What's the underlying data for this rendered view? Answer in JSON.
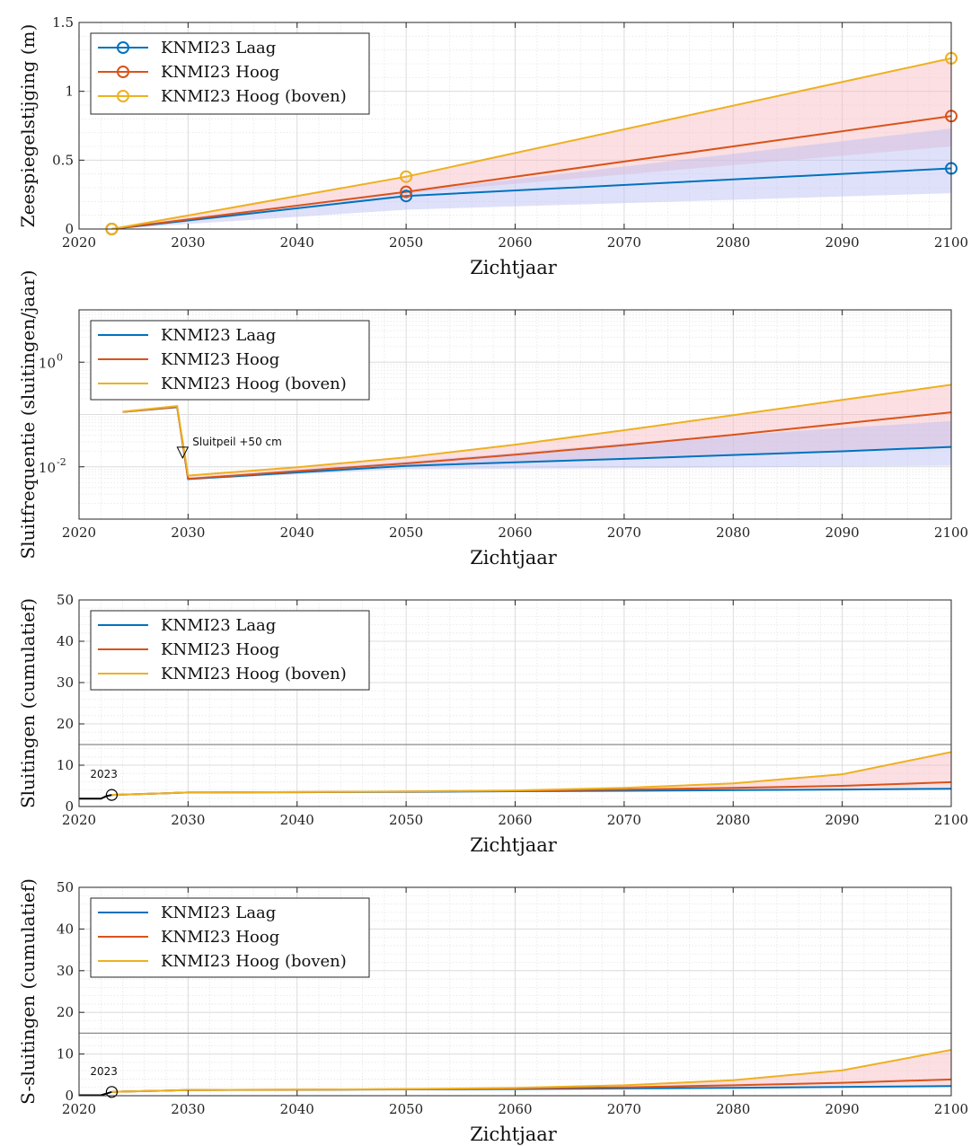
{
  "colors": {
    "laag": "#0072BD",
    "hoog": "#D95319",
    "boven": "#EDB120",
    "band_red": "#f7b9be",
    "band_blue": "#b9bcf5",
    "grid": "#dcdcdc",
    "axis": "#262626"
  },
  "chart_data": [
    {
      "type": "line",
      "xlabel": "Zichtjaar",
      "ylabel": "Zeespiegelstijging (m)",
      "xlim": [
        2020,
        2100
      ],
      "ylim": [
        0,
        1.5
      ],
      "yscale": "linear",
      "grid": true,
      "legend": "top-left",
      "xticks": [
        "2020",
        "2030",
        "2040",
        "2050",
        "2060",
        "2070",
        "2080",
        "2090",
        "2100"
      ],
      "yticks": [
        "0",
        "0.5",
        "1",
        "1.5"
      ],
      "series": [
        {
          "name": "KNMI23 Laag",
          "markers": true,
          "x": [
            2023,
            2050,
            2100
          ],
          "y": [
            0,
            0.24,
            0.44
          ]
        },
        {
          "name": "KNMI23 Hoog",
          "markers": true,
          "x": [
            2023,
            2050,
            2100
          ],
          "y": [
            0,
            0.27,
            0.82
          ]
        },
        {
          "name": "KNMI23 Hoog (boven)",
          "markers": true,
          "x": [
            2023,
            2050,
            2100
          ],
          "y": [
            0,
            0.38,
            1.24
          ]
        }
      ],
      "bands": [
        {
          "color": "red",
          "x": [
            2023,
            2050,
            2100
          ],
          "lower": [
            0,
            0.26,
            0.6
          ],
          "upper": [
            0,
            0.38,
            1.24
          ]
        },
        {
          "color": "blue",
          "x": [
            2023,
            2050,
            2100
          ],
          "lower": [
            0,
            0.14,
            0.26
          ],
          "upper": [
            0,
            0.27,
            0.73
          ]
        }
      ]
    },
    {
      "type": "line",
      "xlabel": "Zichtjaar",
      "ylabel": "Sluitfrequentie (sluitingen/jaar)",
      "xlim": [
        2020,
        2100
      ],
      "ylim": [
        0.001,
        10
      ],
      "yscale": "log",
      "grid": true,
      "legend": "top-left",
      "xticks": [
        "2020",
        "2030",
        "2040",
        "2050",
        "2060",
        "2070",
        "2080",
        "2090",
        "2100"
      ],
      "yticks": [
        {
          "base": "10",
          "exp": "0",
          "value": 1
        },
        {
          "base": "10",
          "exp": "-2",
          "value": 0.01
        }
      ],
      "annotation": {
        "text": "Sluitpeil +50 cm",
        "x": 2029.5,
        "y": 0.016
      },
      "series": [
        {
          "name": "KNMI23 Laag",
          "x": [
            2024,
            2029,
            2030,
            2040,
            2050,
            2060,
            2070,
            2080,
            2090,
            2100
          ],
          "y": [
            0.112,
            0.138,
            0.0058,
            0.0078,
            0.0104,
            0.0122,
            0.0142,
            0.0168,
            0.0198,
            0.024
          ]
        },
        {
          "name": "KNMI23 Hoog",
          "x": [
            2024,
            2029,
            2030,
            2040,
            2050,
            2060,
            2070,
            2080,
            2090,
            2100
          ],
          "y": [
            0.112,
            0.14,
            0.0059,
            0.0083,
            0.0116,
            0.017,
            0.026,
            0.041,
            0.067,
            0.11
          ]
        },
        {
          "name": "KNMI23 Hoog (boven)",
          "x": [
            2024,
            2029,
            2030,
            2040,
            2050,
            2060,
            2070,
            2080,
            2090,
            2100
          ],
          "y": [
            0.113,
            0.145,
            0.0068,
            0.0098,
            0.0152,
            0.0265,
            0.05,
            0.097,
            0.19,
            0.37
          ]
        }
      ],
      "bands": [
        {
          "color": "red",
          "x": [
            2030,
            2040,
            2050,
            2060,
            2070,
            2080,
            2090,
            2100
          ],
          "lower": [
            0.0058,
            0.0078,
            0.0104,
            0.0122,
            0.0142,
            0.0168,
            0.0198,
            0.024
          ],
          "upper": [
            0.0068,
            0.0098,
            0.0152,
            0.0265,
            0.05,
            0.097,
            0.19,
            0.37
          ]
        },
        {
          "color": "blue",
          "x": [
            2030,
            2040,
            2050,
            2060,
            2070,
            2080,
            2090,
            2100
          ],
          "lower": [
            0.0056,
            0.0072,
            0.009,
            0.0092,
            0.0094,
            0.0097,
            0.0101,
            0.0105
          ],
          "upper": [
            0.0061,
            0.0087,
            0.0125,
            0.0185,
            0.028,
            0.04,
            0.055,
            0.075
          ]
        }
      ]
    },
    {
      "type": "line",
      "xlabel": "Zichtjaar",
      "ylabel": "Sluitingen (cumulatief)",
      "xlim": [
        2020,
        2100
      ],
      "ylim": [
        0,
        50
      ],
      "yscale": "linear",
      "grid": true,
      "legend": "top-left",
      "xticks": [
        "2020",
        "2030",
        "2040",
        "2050",
        "2060",
        "2070",
        "2080",
        "2090",
        "2100"
      ],
      "yticks": [
        "0",
        "10",
        "20",
        "30",
        "40",
        "50"
      ],
      "reference_line_y": 15,
      "start_point": {
        "label": "2023",
        "x": 2023,
        "y": 2.8
      },
      "history": {
        "x": [
          2020,
          2022,
          2022.5,
          2023
        ],
        "y": [
          1.9,
          1.9,
          2.5,
          2.8
        ]
      },
      "series": [
        {
          "name": "KNMI23 Laag",
          "x": [
            2023,
            2024,
            2028,
            2029,
            2030,
            2040,
            2050,
            2060,
            2070,
            2080,
            2090,
            2100
          ],
          "y": [
            2.8,
            2.9,
            3.2,
            3.3,
            3.4,
            3.45,
            3.55,
            3.7,
            3.8,
            3.95,
            4.1,
            4.3
          ]
        },
        {
          "name": "KNMI23 Hoog",
          "x": [
            2023,
            2024,
            2028,
            2029,
            2030,
            2040,
            2050,
            2060,
            2070,
            2080,
            2090,
            2100
          ],
          "y": [
            2.8,
            2.9,
            3.2,
            3.3,
            3.4,
            3.5,
            3.6,
            3.8,
            4.1,
            4.5,
            5.0,
            5.9
          ]
        },
        {
          "name": "KNMI23 Hoog (boven)",
          "x": [
            2023,
            2024,
            2028,
            2029,
            2030,
            2040,
            2050,
            2060,
            2070,
            2080,
            2090,
            2100
          ],
          "y": [
            2.8,
            2.9,
            3.2,
            3.3,
            3.4,
            3.5,
            3.65,
            3.9,
            4.5,
            5.6,
            7.8,
            13.2
          ]
        }
      ],
      "bands": [
        {
          "color": "red",
          "x": [
            2030,
            2040,
            2050,
            2060,
            2070,
            2080,
            2090,
            2100
          ],
          "lower": [
            3.4,
            3.45,
            3.55,
            3.7,
            3.8,
            3.95,
            4.1,
            4.3
          ],
          "upper": [
            3.4,
            3.5,
            3.65,
            3.9,
            4.5,
            5.6,
            7.8,
            13.2
          ]
        }
      ]
    },
    {
      "type": "line",
      "xlabel": "Zichtjaar",
      "ylabel": "S-sluitingen (cumulatief)",
      "xlim": [
        2020,
        2100
      ],
      "ylim": [
        0,
        50
      ],
      "yscale": "linear",
      "grid": true,
      "legend": "top-left",
      "xticks": [
        "2020",
        "2030",
        "2040",
        "2050",
        "2060",
        "2070",
        "2080",
        "2090",
        "2100"
      ],
      "yticks": [
        "0",
        "10",
        "20",
        "30",
        "40",
        "50"
      ],
      "reference_line_y": 15,
      "start_point": {
        "label": "2023",
        "x": 2023,
        "y": 0.9
      },
      "history": {
        "x": [
          2020,
          2022,
          2022.5,
          2023
        ],
        "y": [
          0.1,
          0.1,
          0.5,
          0.9
        ]
      },
      "series": [
        {
          "name": "KNMI23 Laag",
          "x": [
            2023,
            2024,
            2028,
            2029,
            2030,
            2040,
            2050,
            2060,
            2070,
            2080,
            2090,
            2100
          ],
          "y": [
            0.9,
            1.0,
            1.2,
            1.3,
            1.35,
            1.4,
            1.5,
            1.6,
            1.75,
            1.9,
            2.1,
            2.3
          ]
        },
        {
          "name": "KNMI23 Hoog",
          "x": [
            2023,
            2024,
            2028,
            2029,
            2030,
            2040,
            2050,
            2060,
            2070,
            2080,
            2090,
            2100
          ],
          "y": [
            0.9,
            1.0,
            1.2,
            1.3,
            1.35,
            1.45,
            1.55,
            1.75,
            2.0,
            2.5,
            3.1,
            3.9
          ]
        },
        {
          "name": "KNMI23 Hoog (boven)",
          "x": [
            2023,
            2024,
            2028,
            2029,
            2030,
            2040,
            2050,
            2060,
            2070,
            2080,
            2090,
            2100
          ],
          "y": [
            0.9,
            1.0,
            1.2,
            1.3,
            1.35,
            1.45,
            1.6,
            1.9,
            2.5,
            3.7,
            6.1,
            11.0
          ]
        }
      ],
      "bands": [
        {
          "color": "red",
          "x": [
            2030,
            2040,
            2050,
            2060,
            2070,
            2080,
            2090,
            2100
          ],
          "lower": [
            1.35,
            1.4,
            1.5,
            1.6,
            1.75,
            1.9,
            2.1,
            2.3
          ],
          "upper": [
            1.35,
            1.45,
            1.6,
            1.9,
            2.5,
            3.7,
            6.1,
            11.0
          ]
        }
      ]
    }
  ]
}
